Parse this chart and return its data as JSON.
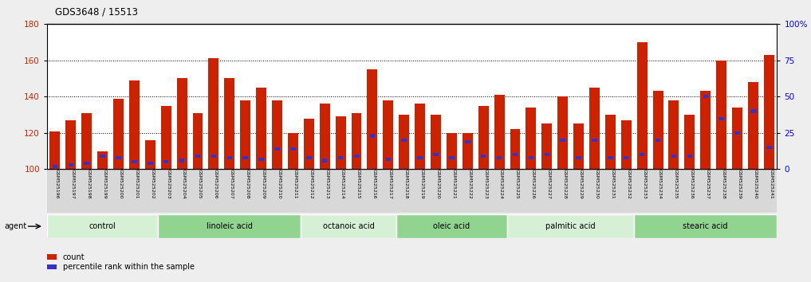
{
  "title": "GDS3648 / 15513",
  "samples": [
    "GSM525196",
    "GSM525197",
    "GSM525198",
    "GSM525199",
    "GSM525200",
    "GSM525201",
    "GSM525202",
    "GSM525203",
    "GSM525204",
    "GSM525205",
    "GSM525206",
    "GSM525207",
    "GSM525208",
    "GSM525209",
    "GSM525210",
    "GSM525211",
    "GSM525212",
    "GSM525213",
    "GSM525214",
    "GSM525215",
    "GSM525216",
    "GSM525217",
    "GSM525218",
    "GSM525219",
    "GSM525220",
    "GSM525221",
    "GSM525222",
    "GSM525223",
    "GSM525224",
    "GSM525225",
    "GSM525226",
    "GSM525227",
    "GSM525228",
    "GSM525229",
    "GSM525230",
    "GSM525231",
    "GSM525232",
    "GSM525233",
    "GSM525234",
    "GSM525235",
    "GSM525236",
    "GSM525237",
    "GSM525238",
    "GSM525239",
    "GSM525240",
    "GSM525241"
  ],
  "count_values": [
    121,
    127,
    131,
    110,
    139,
    149,
    116,
    135,
    150,
    131,
    161,
    150,
    138,
    145,
    138,
    120,
    128,
    136,
    129,
    131,
    155,
    138,
    130,
    136,
    130,
    120,
    120,
    135,
    141,
    122,
    134,
    125,
    140,
    125,
    145,
    130,
    127,
    170,
    143,
    138,
    130,
    143,
    160,
    134,
    148,
    163
  ],
  "percentile_values": [
    2,
    3,
    4,
    9,
    8,
    5,
    4,
    5,
    6,
    9,
    9,
    8,
    8,
    7,
    14,
    14,
    8,
    6,
    8,
    9,
    23,
    7,
    20,
    8,
    10,
    8,
    19,
    9,
    8,
    10,
    8,
    10,
    20,
    8,
    20,
    8,
    8,
    10,
    20,
    9,
    9,
    50,
    35,
    25,
    40,
    15
  ],
  "groups": [
    {
      "label": "control",
      "start": 0,
      "end": 7
    },
    {
      "label": "linoleic acid",
      "start": 7,
      "end": 16
    },
    {
      "label": "octanoic acid",
      "start": 16,
      "end": 22
    },
    {
      "label": "oleic acid",
      "start": 22,
      "end": 29
    },
    {
      "label": "palmitic acid",
      "start": 29,
      "end": 37
    },
    {
      "label": "stearic acid",
      "start": 37,
      "end": 46
    }
  ],
  "group_colors": [
    "#d6f0d6",
    "#90d490",
    "#d6f0d6",
    "#90d490",
    "#d6f0d6",
    "#90d490"
  ],
  "ylim_left": [
    100,
    180
  ],
  "ylim_right": [
    0,
    100
  ],
  "yticks_left": [
    100,
    120,
    140,
    160,
    180
  ],
  "yticks_right": [
    0,
    25,
    50,
    75,
    100
  ],
  "bar_color": "#cc2200",
  "blue_color": "#3333cc",
  "bar_width": 0.65,
  "background_color": "#eeeeee",
  "plot_bg_color": "#ffffff",
  "agent_label": "agent",
  "legend_count_label": "count",
  "legend_pct_label": "percentile rank within the sample"
}
